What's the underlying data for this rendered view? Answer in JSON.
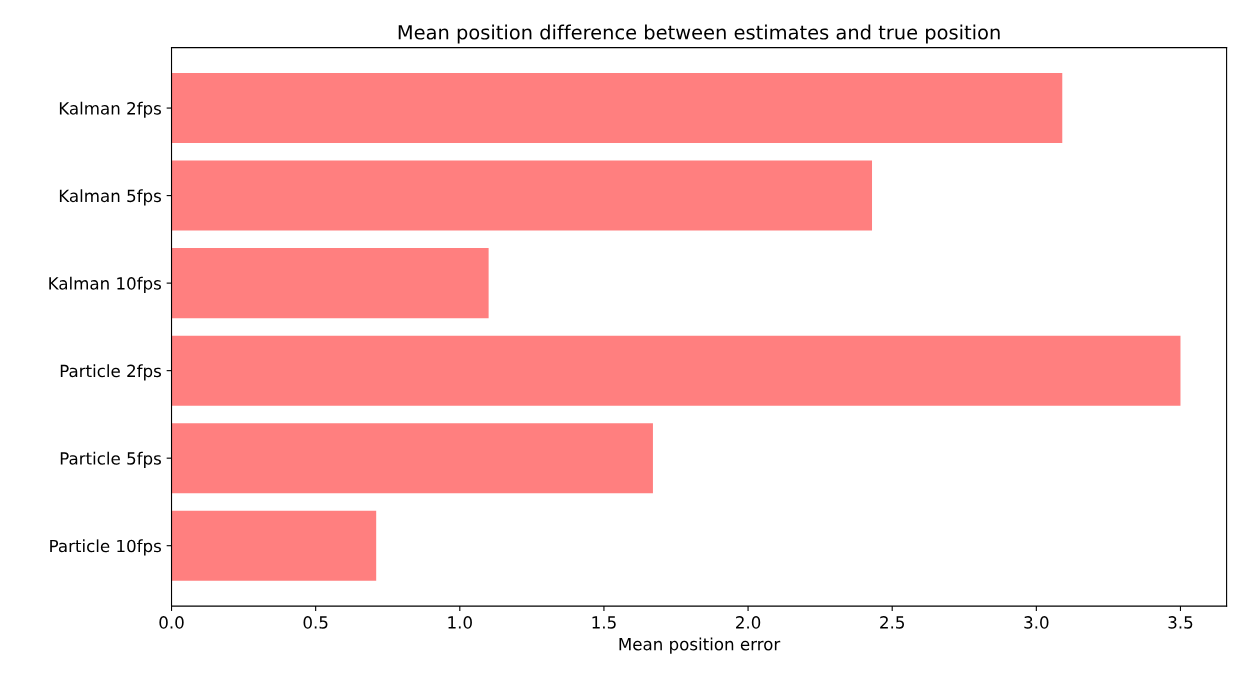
{
  "chart_data": {
    "type": "bar",
    "orientation": "horizontal",
    "title": "Mean position difference between estimates and true position",
    "xlabel": "Mean position error",
    "categories": [
      "Kalman 2fps",
      "Kalman 5fps",
      "Kalman 10fps",
      "Particle 2fps",
      "Particle 5fps",
      "Particle 10fps"
    ],
    "values": [
      3.09,
      2.43,
      1.1,
      3.5,
      1.67,
      0.71
    ],
    "color": "#ff7f7f",
    "xlim": [
      0,
      3.66
    ],
    "xticks": [
      {
        "value": 0,
        "label": "0.0"
      },
      {
        "value": 0.5,
        "label": "0.5"
      },
      {
        "value": 1,
        "label": "1.0"
      },
      {
        "value": 1.5,
        "label": "1.5"
      },
      {
        "value": 2,
        "label": "2.0"
      },
      {
        "value": 2.5,
        "label": "2.5"
      },
      {
        "value": 3,
        "label": "3.0"
      },
      {
        "value": 3.5,
        "label": "3.5"
      }
    ],
    "grid": false
  }
}
